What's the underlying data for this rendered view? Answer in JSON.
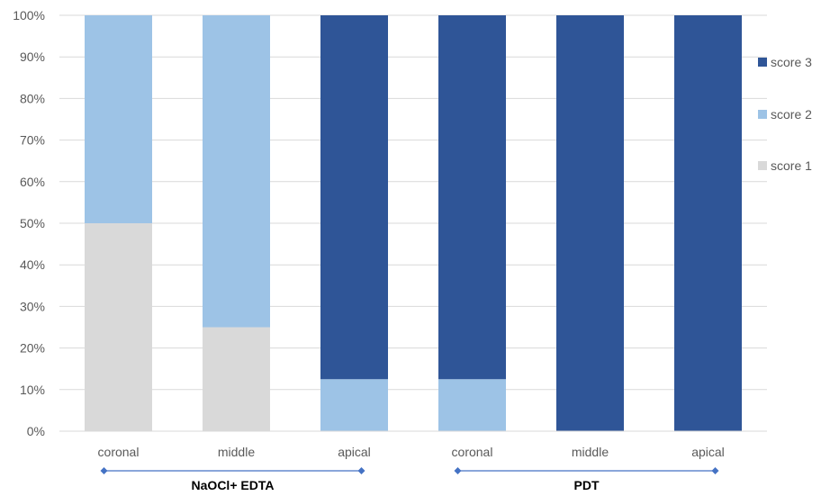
{
  "chart_data": {
    "type": "bar",
    "stacked": true,
    "percent": true,
    "categories": [
      "coronal",
      "middle",
      "apical",
      "coronal",
      "middle",
      "apical"
    ],
    "groups": [
      {
        "label": "NaOCl+ EDTA",
        "categories": [
          0,
          1,
          2
        ]
      },
      {
        "label": "PDT",
        "categories": [
          3,
          4,
          5
        ]
      }
    ],
    "series": [
      {
        "name": "score 1",
        "color": "#d9d9d9",
        "values": [
          50,
          25,
          0,
          0,
          0,
          0
        ]
      },
      {
        "name": "score 2",
        "color": "#9dc3e6",
        "values": [
          50,
          75,
          12.5,
          12.5,
          0,
          0
        ]
      },
      {
        "name": "score 3",
        "color": "#2f5597",
        "values": [
          0,
          0,
          87.5,
          87.5,
          100,
          100
        ]
      }
    ],
    "yticks": [
      "0%",
      "10%",
      "20%",
      "30%",
      "40%",
      "50%",
      "60%",
      "70%",
      "80%",
      "90%",
      "100%"
    ],
    "ylim": [
      0,
      100
    ],
    "grid": true,
    "legend": "right",
    "legend_order": [
      "score 3",
      "score 2",
      "score 1"
    ],
    "title": "",
    "xlabel": "",
    "ylabel": ""
  }
}
